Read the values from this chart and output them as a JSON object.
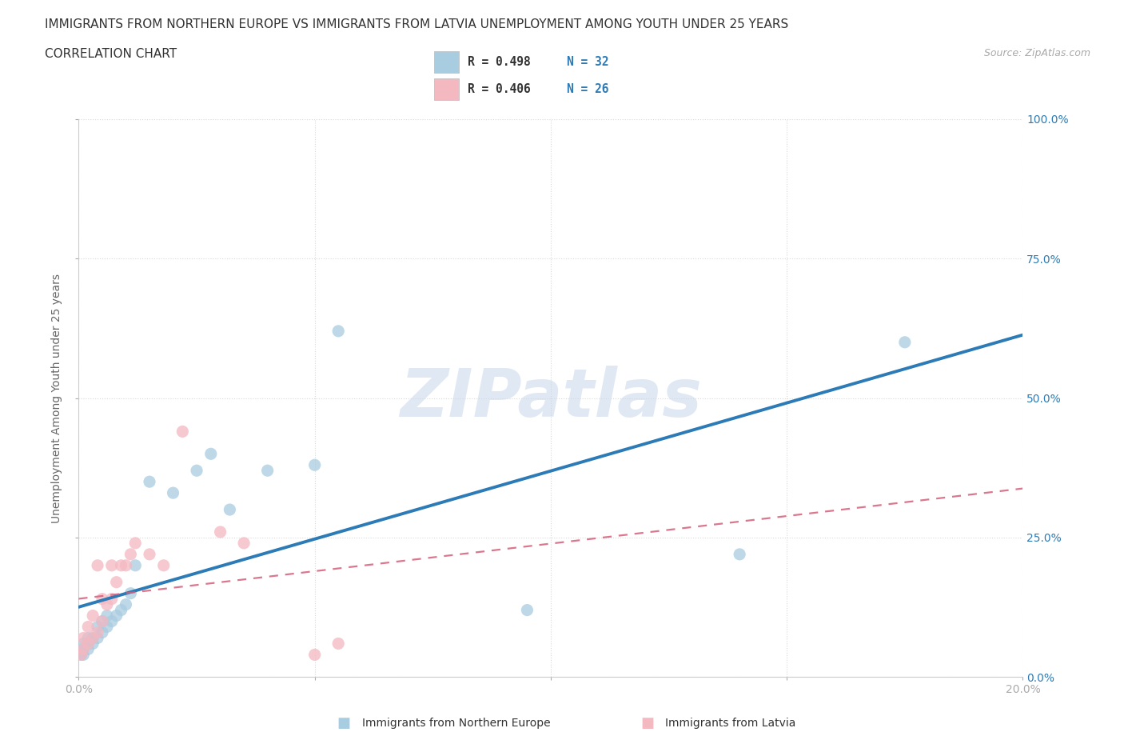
{
  "title_line1": "IMMIGRANTS FROM NORTHERN EUROPE VS IMMIGRANTS FROM LATVIA UNEMPLOYMENT AMONG YOUTH UNDER 25 YEARS",
  "title_line2": "CORRELATION CHART",
  "source": "Source: ZipAtlas.com",
  "ylabel": "Unemployment Among Youth under 25 years",
  "watermark_text": "ZIPatlas",
  "legend_label1": "Immigrants from Northern Europe",
  "legend_label2": "Immigrants from Latvia",
  "legend_R1": "R = 0.498",
  "legend_N1": "N = 32",
  "legend_R2": "R = 0.406",
  "legend_N2": "N = 26",
  "color_blue": "#a8cce0",
  "color_blue_line": "#2c7bb6",
  "color_pink": "#f4b8c1",
  "color_pink_line": "#d45f7a",
  "color_text_blue": "#2c7bb6",
  "xlim": [
    0.0,
    0.2
  ],
  "ylim": [
    0.0,
    1.0
  ],
  "blue_x": [
    0.0005,
    0.001,
    0.001,
    0.001,
    0.002,
    0.002,
    0.002,
    0.003,
    0.003,
    0.004,
    0.004,
    0.005,
    0.005,
    0.006,
    0.006,
    0.007,
    0.008,
    0.009,
    0.01,
    0.011,
    0.012,
    0.015,
    0.02,
    0.025,
    0.028,
    0.032,
    0.04,
    0.05,
    0.055,
    0.095,
    0.14,
    0.175
  ],
  "blue_y": [
    0.04,
    0.04,
    0.05,
    0.06,
    0.05,
    0.06,
    0.07,
    0.06,
    0.07,
    0.07,
    0.09,
    0.08,
    0.1,
    0.09,
    0.11,
    0.1,
    0.11,
    0.12,
    0.13,
    0.15,
    0.2,
    0.35,
    0.33,
    0.37,
    0.4,
    0.3,
    0.37,
    0.38,
    0.62,
    0.12,
    0.22,
    0.6
  ],
  "pink_x": [
    0.0005,
    0.001,
    0.001,
    0.002,
    0.002,
    0.003,
    0.003,
    0.004,
    0.004,
    0.005,
    0.005,
    0.006,
    0.007,
    0.007,
    0.008,
    0.009,
    0.01,
    0.011,
    0.012,
    0.015,
    0.018,
    0.022,
    0.03,
    0.035,
    0.05,
    0.055
  ],
  "pink_y": [
    0.04,
    0.05,
    0.07,
    0.06,
    0.09,
    0.07,
    0.11,
    0.08,
    0.2,
    0.1,
    0.14,
    0.13,
    0.14,
    0.2,
    0.17,
    0.2,
    0.2,
    0.22,
    0.24,
    0.22,
    0.2,
    0.44,
    0.26,
    0.24,
    0.04,
    0.06
  ],
  "background_color": "#ffffff",
  "grid_color": "#d8d8d8",
  "title_fontsize": 11,
  "axis_label_fontsize": 10,
  "tick_fontsize": 10,
  "watermark_fontsize": 60,
  "watermark_color": "#c8d8ea",
  "watermark_alpha": 0.55
}
